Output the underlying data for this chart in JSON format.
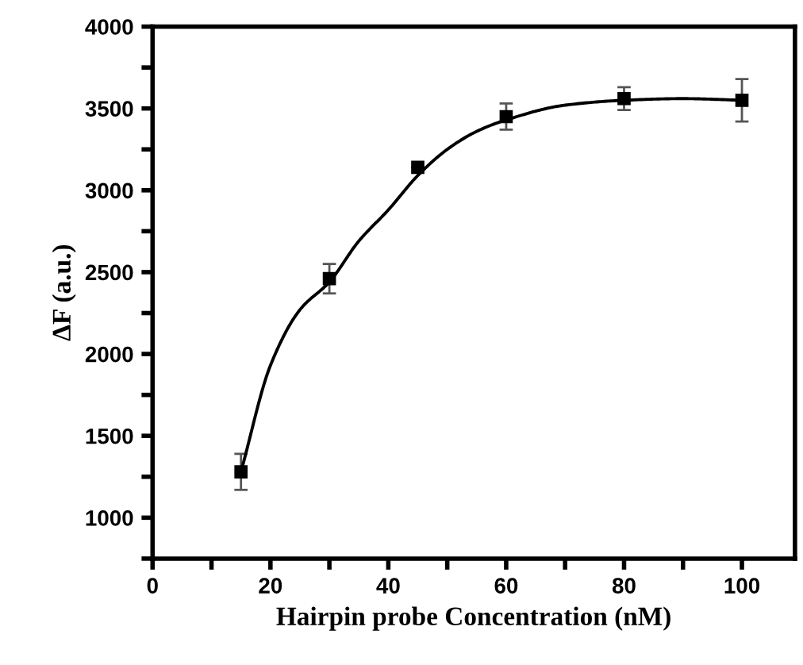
{
  "chart_data": {
    "type": "scatter",
    "xlabel": "Hairpin probe Concentration (nM)",
    "ylabel": "ΔF (a.u.)",
    "xlim": [
      0,
      109
    ],
    "ylim": [
      750,
      4000
    ],
    "xticks": [
      0,
      {
        "value": 10,
        "label": null
      },
      20,
      {
        "value": 30,
        "label": null
      },
      40,
      {
        "value": 50,
        "label": null
      },
      60,
      {
        "value": 70,
        "label": null
      },
      80,
      {
        "value": 90,
        "label": null
      },
      100
    ],
    "yticks": [
      {
        "value": 750,
        "label": null
      },
      1000,
      {
        "value": 1250,
        "label": null
      },
      1500,
      {
        "value": 1750,
        "label": null
      },
      2000,
      {
        "value": 2250,
        "label": null
      },
      2500,
      {
        "value": 2750,
        "label": null
      },
      3000,
      {
        "value": 3250,
        "label": null
      },
      3500,
      {
        "value": 3750,
        "label": null
      },
      4000
    ],
    "grid": false,
    "series": [
      {
        "color": "#000000",
        "marker": "square",
        "x": [
          15,
          30,
          45,
          60,
          80,
          100
        ],
        "values": [
          1280,
          2460,
          3140,
          3450,
          3560,
          3550
        ],
        "errors": [
          110,
          90,
          null,
          80,
          70,
          130
        ]
      },
      {
        "type": "line",
        "color": "#000000",
        "marker": "none",
        "line_style": "solid",
        "x": [
          15,
          20,
          25,
          30,
          35,
          40,
          45,
          50,
          55,
          60,
          70,
          80,
          90,
          100
        ],
        "values": [
          1280,
          1930,
          2270,
          2440,
          2690,
          2880,
          3090,
          3250,
          3360,
          3430,
          3520,
          3550,
          3560,
          3550
        ]
      }
    ]
  }
}
